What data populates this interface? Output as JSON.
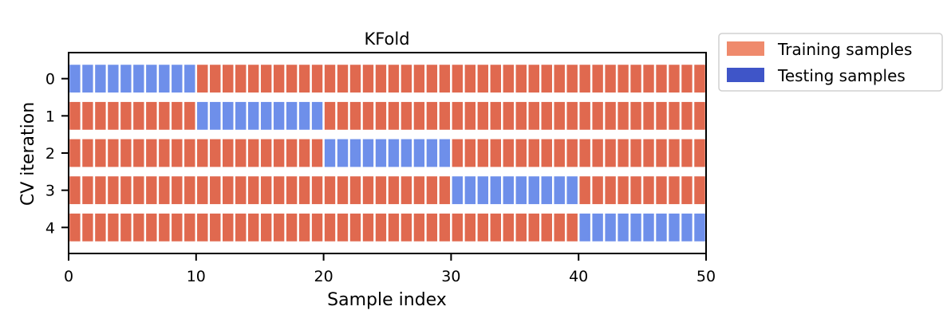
{
  "chart_data": {
    "type": "heatmap",
    "title": "KFold",
    "xlabel": "Sample index",
    "ylabel": "CV iteration",
    "xlim": [
      0,
      50
    ],
    "ylim": [
      4.7,
      -0.7
    ],
    "x_ticks": [
      0,
      10,
      20,
      30,
      40,
      50
    ],
    "y_ticks": [
      0,
      1,
      2,
      3,
      4
    ],
    "n_samples": 50,
    "grid": false,
    "legend_position": "outside-top-right",
    "series": [
      {
        "name": "Training samples",
        "color": "#e0694f",
        "legend_color": "#ef8a6c"
      },
      {
        "name": "Testing samples",
        "color": "#6e8fea",
        "legend_color": "#3f55c8"
      }
    ],
    "iterations": [
      {
        "iteration": 0,
        "test_range": [
          0,
          10
        ]
      },
      {
        "iteration": 1,
        "test_range": [
          10,
          20
        ]
      },
      {
        "iteration": 2,
        "test_range": [
          20,
          30
        ]
      },
      {
        "iteration": 3,
        "test_range": [
          30,
          40
        ]
      },
      {
        "iteration": 4,
        "test_range": [
          40,
          50
        ]
      }
    ]
  }
}
